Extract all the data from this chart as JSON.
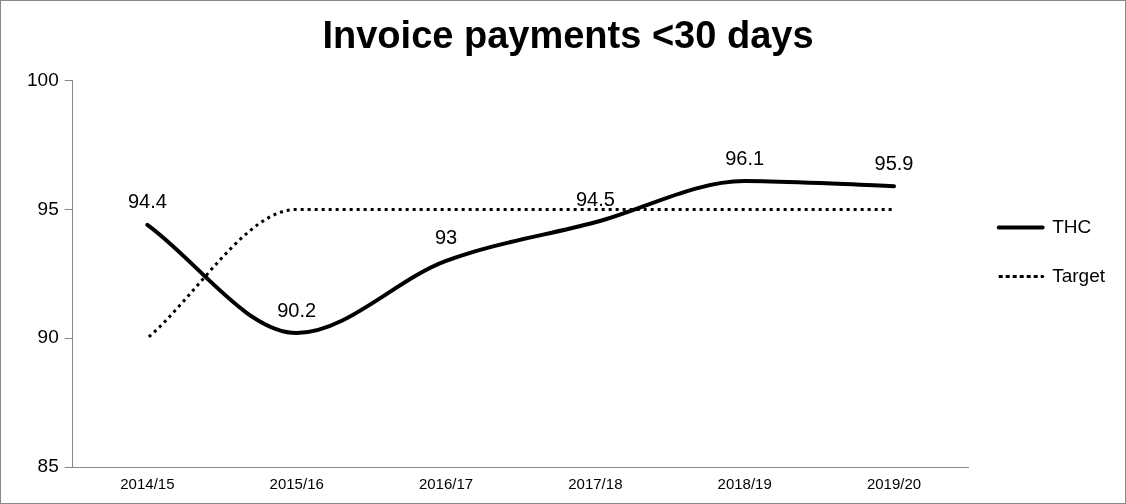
{
  "chart_data": {
    "type": "line",
    "title": "Invoice payments <30 days",
    "categories": [
      "2014/15",
      "2015/16",
      "2016/17",
      "2017/18",
      "2018/19",
      "2019/20"
    ],
    "series": [
      {
        "name": "THC",
        "color": "#000000",
        "values": [
          94.4,
          90.2,
          93,
          94.5,
          96.1,
          95.9
        ],
        "value_labels": [
          "94.4",
          "90.2",
          "93",
          "94.5",
          "96.1",
          "95.9"
        ],
        "line_style": "solid"
      },
      {
        "name": "Target",
        "color": "#000000",
        "values": [
          90,
          95,
          95,
          95,
          95,
          95
        ],
        "line_style": "dotted"
      }
    ],
    "ylim": [
      85,
      100
    ],
    "yticks": [
      85,
      90,
      95,
      100
    ],
    "grid": false,
    "legend": "right",
    "marker": "none"
  }
}
